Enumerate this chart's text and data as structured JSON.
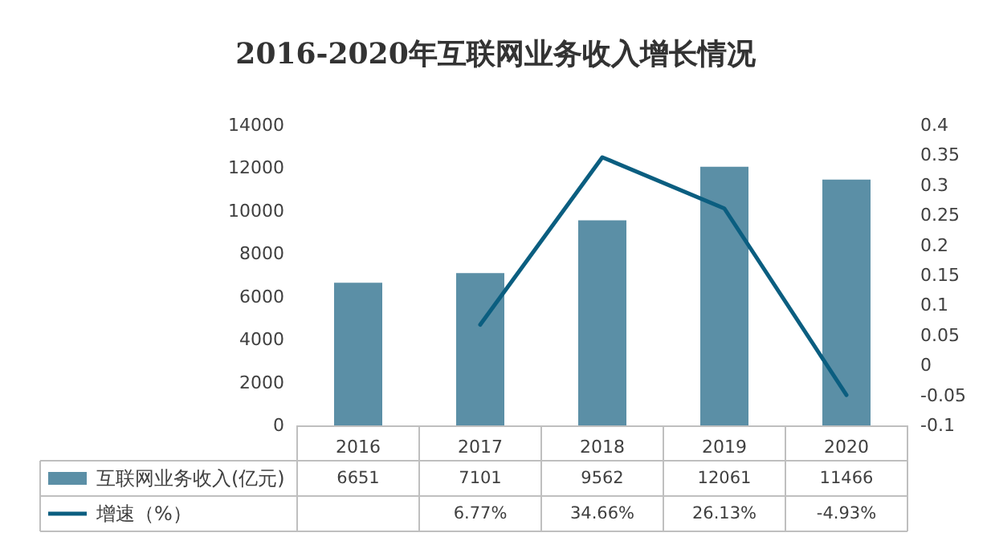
{
  "chart_data": {
    "type": "bar",
    "title": "2016-2020年互联网业务收入增长情况",
    "categories": [
      "2016",
      "2017",
      "2018",
      "2019",
      "2020"
    ],
    "series": [
      {
        "name": "互联网业务收入(亿元)",
        "color": "#5b8fa6",
        "values": [
          6651,
          7101,
          9562,
          12061,
          11466
        ],
        "value_labels": [
          "6651",
          "7101",
          "9562",
          "12061",
          "11466"
        ]
      },
      {
        "name": "增速（%）",
        "type": "line",
        "axis": "y2",
        "color": "#0b5e80",
        "values": [
          null,
          0.0677,
          0.3466,
          0.2613,
          -0.0493
        ],
        "value_labels": [
          null,
          "6.77%",
          "34.66%",
          "26.13%",
          "-4.93%"
        ]
      }
    ],
    "ylim": [
      0,
      14000
    ],
    "yticks": [
      0,
      2000,
      4000,
      6000,
      8000,
      10000,
      12000,
      14000
    ],
    "y2lim": [
      -0.1,
      0.4
    ],
    "y2ticks": [
      -0.1,
      -0.05,
      0,
      0.05,
      0.1,
      0.15,
      0.2,
      0.25,
      0.3,
      0.35,
      0.4
    ],
    "grid": false,
    "legend": "bottom",
    "marker": "none",
    "line_style": "solid"
  }
}
